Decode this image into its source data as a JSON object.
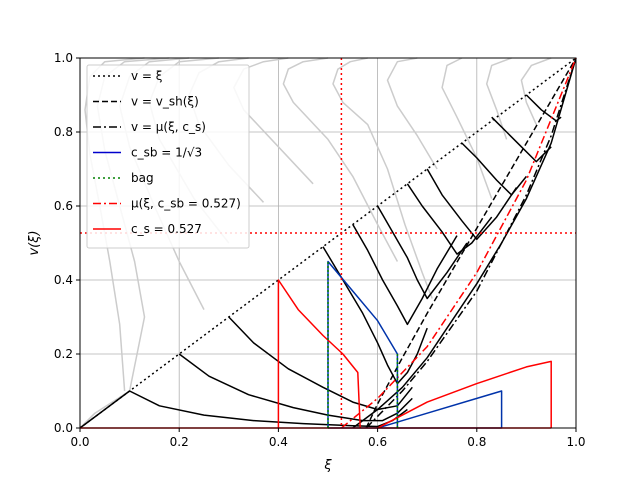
{
  "chart_data": {
    "type": "line",
    "title": "",
    "xlabel": "ξ",
    "ylabel": "v(ξ)",
    "xlim": [
      0,
      1
    ],
    "ylim": [
      0,
      1
    ],
    "grid": true,
    "legend_position": "top-left",
    "x_ticks": [
      "0.0",
      "0.2",
      "0.4",
      "0.6",
      "0.8",
      "1.0"
    ],
    "y_ticks": [
      "0.0",
      "0.2",
      "0.4",
      "0.6",
      "0.8",
      "1.0"
    ],
    "legend": [
      {
        "label": "v = ξ",
        "color": "#000000",
        "dash": "dotted"
      },
      {
        "label": "v = v_sh(ξ)",
        "color": "#000000",
        "dash": "dashed"
      },
      {
        "label": "v = μ(ξ, c_s)",
        "color": "#000000",
        "dash": "dashdot"
      },
      {
        "label": "c_sb = 1/√3",
        "color": "#0000cc",
        "dash": "solid"
      },
      {
        "label": "bag",
        "color": "#008000",
        "dash": "dotted"
      },
      {
        "label": "μ(ξ, c_sb = 0.527)",
        "color": "#ff0000",
        "dash": "dashdot"
      },
      {
        "label": "c_s = 0.527",
        "color": "#ff0000",
        "dash": "solid"
      }
    ],
    "reference_lines": {
      "vertical_red_dotted_x": 0.527,
      "horizontal_red_dotted_y": 0.527
    },
    "series": [
      {
        "style": "gray-solid",
        "points": [
          [
            0.58,
            1.0
          ],
          [
            0.545,
            0.99
          ],
          [
            0.52,
            0.97
          ],
          [
            0.51,
            0.93
          ],
          [
            0.53,
            0.88
          ],
          [
            0.58,
            0.82
          ],
          [
            0.62,
            0.7
          ],
          [
            0.655,
            0.55
          ],
          [
            0.69,
            0.42
          ],
          [
            0.71,
            0.35
          ]
        ]
      },
      {
        "style": "gray-solid",
        "points": [
          [
            0.5,
            1.0
          ],
          [
            0.45,
            0.99
          ],
          [
            0.42,
            0.97
          ],
          [
            0.41,
            0.93
          ],
          [
            0.43,
            0.88
          ],
          [
            0.5,
            0.78
          ],
          [
            0.55,
            0.68
          ],
          [
            0.6,
            0.55
          ],
          [
            0.64,
            0.45
          ]
        ]
      },
      {
        "style": "gray-solid",
        "points": [
          [
            0.42,
            1.0
          ],
          [
            0.37,
            0.99
          ],
          [
            0.33,
            0.97
          ],
          [
            0.31,
            0.92
          ],
          [
            0.33,
            0.86
          ],
          [
            0.4,
            0.76
          ],
          [
            0.47,
            0.66
          ]
        ]
      },
      {
        "style": "gray-solid",
        "points": [
          [
            0.34,
            1.0
          ],
          [
            0.28,
            0.99
          ],
          [
            0.24,
            0.96
          ],
          [
            0.22,
            0.9
          ],
          [
            0.24,
            0.82
          ],
          [
            0.3,
            0.71
          ],
          [
            0.37,
            0.61
          ]
        ]
      },
      {
        "style": "gray-solid",
        "points": [
          [
            0.28,
            1.0
          ],
          [
            0.2,
            0.99
          ],
          [
            0.16,
            0.95
          ],
          [
            0.14,
            0.88
          ],
          [
            0.16,
            0.78
          ],
          [
            0.23,
            0.62
          ],
          [
            0.3,
            0.5
          ]
        ]
      },
      {
        "style": "gray-solid",
        "points": [
          [
            0.22,
            1.0
          ],
          [
            0.14,
            0.99
          ],
          [
            0.1,
            0.95
          ],
          [
            0.08,
            0.87
          ],
          [
            0.1,
            0.76
          ],
          [
            0.15,
            0.6
          ],
          [
            0.2,
            0.45
          ],
          [
            0.25,
            0.32
          ]
        ]
      },
      {
        "style": "gray-solid",
        "points": [
          [
            0.18,
            1.0
          ],
          [
            0.09,
            0.99
          ],
          [
            0.05,
            0.95
          ],
          [
            0.035,
            0.87
          ],
          [
            0.05,
            0.75
          ],
          [
            0.08,
            0.6
          ],
          [
            0.11,
            0.45
          ],
          [
            0.13,
            0.3
          ],
          [
            0.1,
            0.1
          ]
        ]
      },
      {
        "style": "gray-solid",
        "points": [
          [
            0.13,
            1.0
          ],
          [
            0.05,
            0.99
          ],
          [
            0.02,
            0.95
          ],
          [
            0.01,
            0.86
          ],
          [
            0.02,
            0.74
          ],
          [
            0.04,
            0.6
          ],
          [
            0.06,
            0.45
          ],
          [
            0.08,
            0.28
          ],
          [
            0.09,
            0.1
          ]
        ]
      },
      {
        "style": "gray-solid",
        "points": [
          [
            0.77,
            1.0
          ],
          [
            0.74,
            0.98
          ],
          [
            0.73,
            0.92
          ],
          [
            0.76,
            0.84
          ],
          [
            0.8,
            0.73
          ],
          [
            0.83,
            0.62
          ]
        ]
      },
      {
        "style": "gray-solid",
        "points": [
          [
            0.87,
            1.0
          ],
          [
            0.83,
            0.98
          ],
          [
            0.82,
            0.93
          ],
          [
            0.84,
            0.86
          ],
          [
            0.86,
            0.78
          ]
        ]
      },
      {
        "style": "gray-solid",
        "points": [
          [
            0.95,
            1.0
          ],
          [
            0.91,
            0.98
          ],
          [
            0.89,
            0.94
          ],
          [
            0.9,
            0.88
          ],
          [
            0.92,
            0.82
          ]
        ]
      },
      {
        "style": "gray-solid",
        "points": [
          [
            0.68,
            1.0
          ],
          [
            0.64,
            0.99
          ],
          [
            0.62,
            0.94
          ],
          [
            0.64,
            0.87
          ],
          [
            0.68,
            0.79
          ],
          [
            0.72,
            0.7
          ]
        ]
      },
      {
        "style": "gray-solid",
        "points": [
          [
            0.0,
            0.0
          ],
          [
            0.03,
            0.04
          ],
          [
            0.1,
            0.1
          ]
        ]
      },
      {
        "style": "ref-v-eq-xi",
        "points": [
          [
            0,
            0
          ],
          [
            1,
            1
          ]
        ]
      },
      {
        "style": "ref-vsh",
        "points": [
          [
            0.577,
            0.0
          ],
          [
            0.6,
            0.065
          ],
          [
            0.65,
            0.19
          ],
          [
            0.7,
            0.31
          ],
          [
            0.8,
            0.54
          ],
          [
            0.9,
            0.77
          ],
          [
            1.0,
            1.0
          ]
        ]
      },
      {
        "style": "ref-mu",
        "points": [
          [
            0.577,
            0.0
          ],
          [
            0.65,
            0.1
          ],
          [
            0.7,
            0.18
          ],
          [
            0.8,
            0.37
          ],
          [
            0.9,
            0.63
          ],
          [
            0.95,
            0.79
          ],
          [
            1.0,
            1.0
          ]
        ]
      },
      {
        "style": "ref-mu-red",
        "points": [
          [
            0.527,
            0.0
          ],
          [
            0.6,
            0.08
          ],
          [
            0.7,
            0.22
          ],
          [
            0.8,
            0.42
          ],
          [
            0.9,
            0.67
          ],
          [
            1.0,
            1.0
          ]
        ]
      },
      {
        "style": "black-solid",
        "points": [
          [
            0.0,
            0.0
          ],
          [
            0.1,
            0.1
          ],
          [
            0.16,
            0.06
          ],
          [
            0.25,
            0.035
          ],
          [
            0.35,
            0.02
          ],
          [
            0.45,
            0.012
          ],
          [
            0.55,
            0.006
          ],
          [
            0.6,
            0.004
          ],
          [
            0.63,
            0.02
          ],
          [
            0.66,
            0.05
          ]
        ]
      },
      {
        "style": "black-solid",
        "points": [
          [
            0.2,
            0.2
          ],
          [
            0.26,
            0.14
          ],
          [
            0.34,
            0.09
          ],
          [
            0.43,
            0.055
          ],
          [
            0.5,
            0.035
          ],
          [
            0.57,
            0.02
          ],
          [
            0.61,
            0.02
          ],
          [
            0.64,
            0.04
          ],
          [
            0.67,
            0.08
          ]
        ]
      },
      {
        "style": "black-solid",
        "points": [
          [
            0.3,
            0.3
          ],
          [
            0.35,
            0.23
          ],
          [
            0.42,
            0.16
          ],
          [
            0.49,
            0.11
          ],
          [
            0.55,
            0.07
          ],
          [
            0.6,
            0.05
          ],
          [
            0.64,
            0.06
          ],
          [
            0.67,
            0.11
          ]
        ]
      },
      {
        "style": "black-solid",
        "points": [
          [
            0.49,
            0.49
          ],
          [
            0.53,
            0.4
          ],
          [
            0.57,
            0.31
          ],
          [
            0.6,
            0.23
          ],
          [
            0.62,
            0.17
          ],
          [
            0.64,
            0.12
          ],
          [
            0.66,
            0.15
          ],
          [
            0.68,
            0.2
          ],
          [
            0.7,
            0.27
          ]
        ]
      },
      {
        "style": "black-solid",
        "points": [
          [
            0.55,
            0.55
          ],
          [
            0.58,
            0.48
          ],
          [
            0.61,
            0.4
          ],
          [
            0.64,
            0.33
          ],
          [
            0.66,
            0.28
          ],
          [
            0.69,
            0.35
          ],
          [
            0.72,
            0.43
          ],
          [
            0.76,
            0.52
          ]
        ]
      },
      {
        "style": "black-solid",
        "points": [
          [
            0.6,
            0.6
          ],
          [
            0.63,
            0.53
          ],
          [
            0.66,
            0.46
          ],
          [
            0.68,
            0.4
          ],
          [
            0.7,
            0.35
          ],
          [
            0.74,
            0.42
          ],
          [
            0.78,
            0.5
          ]
        ]
      },
      {
        "style": "black-solid",
        "points": [
          [
            0.66,
            0.66
          ],
          [
            0.69,
            0.6
          ],
          [
            0.73,
            0.53
          ],
          [
            0.76,
            0.47
          ],
          [
            0.79,
            0.5
          ],
          [
            0.83,
            0.57
          ]
        ]
      },
      {
        "style": "black-solid",
        "points": [
          [
            0.7,
            0.7
          ],
          [
            0.73,
            0.63
          ],
          [
            0.77,
            0.56
          ],
          [
            0.8,
            0.51
          ],
          [
            0.84,
            0.57
          ],
          [
            0.88,
            0.65
          ]
        ]
      },
      {
        "style": "black-solid",
        "points": [
          [
            0.77,
            0.77
          ],
          [
            0.8,
            0.73
          ],
          [
            0.84,
            0.67
          ],
          [
            0.87,
            0.63
          ],
          [
            0.9,
            0.68
          ]
        ]
      },
      {
        "style": "black-solid",
        "points": [
          [
            0.83,
            0.84
          ],
          [
            0.86,
            0.8
          ],
          [
            0.89,
            0.76
          ],
          [
            0.92,
            0.72
          ],
          [
            0.95,
            0.76
          ]
        ]
      },
      {
        "style": "black-solid",
        "points": [
          [
            0.9,
            0.9
          ],
          [
            0.93,
            0.86
          ],
          [
            0.96,
            0.83
          ],
          [
            0.97,
            0.84
          ]
        ]
      },
      {
        "style": "black-solid",
        "points": [
          [
            0.55,
            0.0
          ],
          [
            0.6,
            0.05
          ],
          [
            0.65,
            0.11
          ],
          [
            0.7,
            0.19
          ],
          [
            0.75,
            0.29
          ],
          [
            0.8,
            0.39
          ],
          [
            0.85,
            0.5
          ],
          [
            0.9,
            0.62
          ],
          [
            0.95,
            0.77
          ],
          [
            1.0,
            1.0
          ]
        ]
      },
      {
        "style": "blue-solid",
        "points": [
          [
            0.5,
            0.0
          ],
          [
            0.5,
            0.45
          ],
          [
            0.55,
            0.37
          ],
          [
            0.6,
            0.29
          ],
          [
            0.64,
            0.2
          ],
          [
            0.64,
            0.0
          ]
        ]
      },
      {
        "style": "blue-solid",
        "points": [
          [
            0.6,
            0.0
          ],
          [
            0.7,
            0.04
          ],
          [
            0.8,
            0.08
          ],
          [
            0.85,
            0.1
          ],
          [
            0.85,
            0.0
          ]
        ]
      },
      {
        "style": "blue-solid",
        "points": [
          [
            0.5,
            0.0
          ],
          [
            0.85,
            0.0
          ]
        ]
      },
      {
        "style": "red-solid",
        "points": [
          [
            0.4,
            0.0
          ],
          [
            0.4,
            0.4
          ],
          [
            0.44,
            0.32
          ],
          [
            0.49,
            0.25
          ],
          [
            0.53,
            0.2
          ],
          [
            0.56,
            0.15
          ],
          [
            0.565,
            0.0
          ]
        ]
      },
      {
        "style": "red-solid",
        "points": [
          [
            0.6,
            0.0
          ],
          [
            0.7,
            0.07
          ],
          [
            0.8,
            0.12
          ],
          [
            0.9,
            0.165
          ],
          [
            0.95,
            0.18
          ],
          [
            0.95,
            0.0
          ]
        ]
      },
      {
        "style": "red-solid",
        "points": [
          [
            0.0,
            0.0
          ],
          [
            0.95,
            0.0
          ]
        ]
      },
      {
        "style": "green-dotted",
        "points": [
          [
            0.5,
            0.0
          ],
          [
            0.5,
            0.45
          ]
        ]
      },
      {
        "style": "green-dotted",
        "points": [
          [
            0.64,
            0.0
          ],
          [
            0.64,
            0.2
          ]
        ]
      }
    ]
  }
}
